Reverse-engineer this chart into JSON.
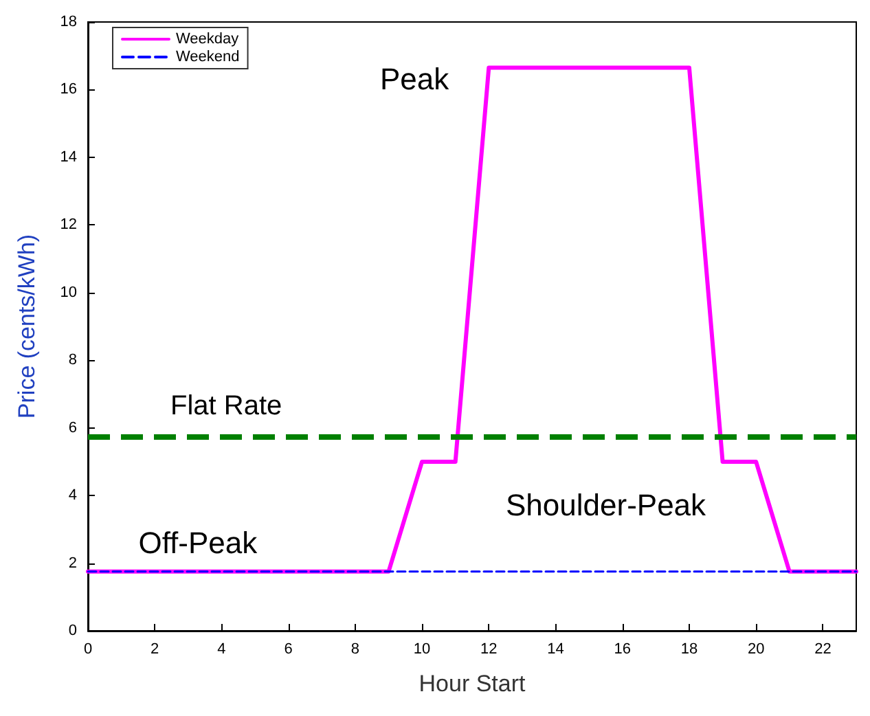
{
  "chart_data": {
    "type": "line",
    "xlabel": "Hour Start",
    "ylabel": "Price (cents/kWh)",
    "xlim": [
      0,
      23
    ],
    "xticks": [
      0,
      2,
      4,
      6,
      8,
      10,
      12,
      14,
      16,
      18,
      20,
      22
    ],
    "ylim": [
      0,
      18
    ],
    "yticks": [
      0,
      2,
      4,
      6,
      8,
      10,
      12,
      14,
      16,
      18
    ],
    "grid": false,
    "legend": "top left",
    "marker": "none",
    "series": [
      {
        "name": "Weekday",
        "color": "#ff00ff",
        "line_style": "solid",
        "x": [
          0,
          9,
          10,
          11,
          12,
          18,
          19,
          20,
          21,
          23
        ],
        "values": [
          1.75,
          1.75,
          5,
          5,
          16.65,
          16.65,
          5,
          5,
          1.75,
          1.75
        ]
      },
      {
        "name": "Weekend",
        "color": "#0000ff",
        "line_style": "dashed",
        "x": [
          0,
          23
        ],
        "values": [
          1.75,
          1.75
        ]
      }
    ],
    "ref_lines": [
      {
        "axis": "y",
        "value": 5.75,
        "label": "Flat Rate",
        "color": "#008000",
        "line_style": "dashed"
      }
    ],
    "annotations": [
      "Peak",
      "Shoulder-Peak",
      "Off-Peak"
    ]
  }
}
